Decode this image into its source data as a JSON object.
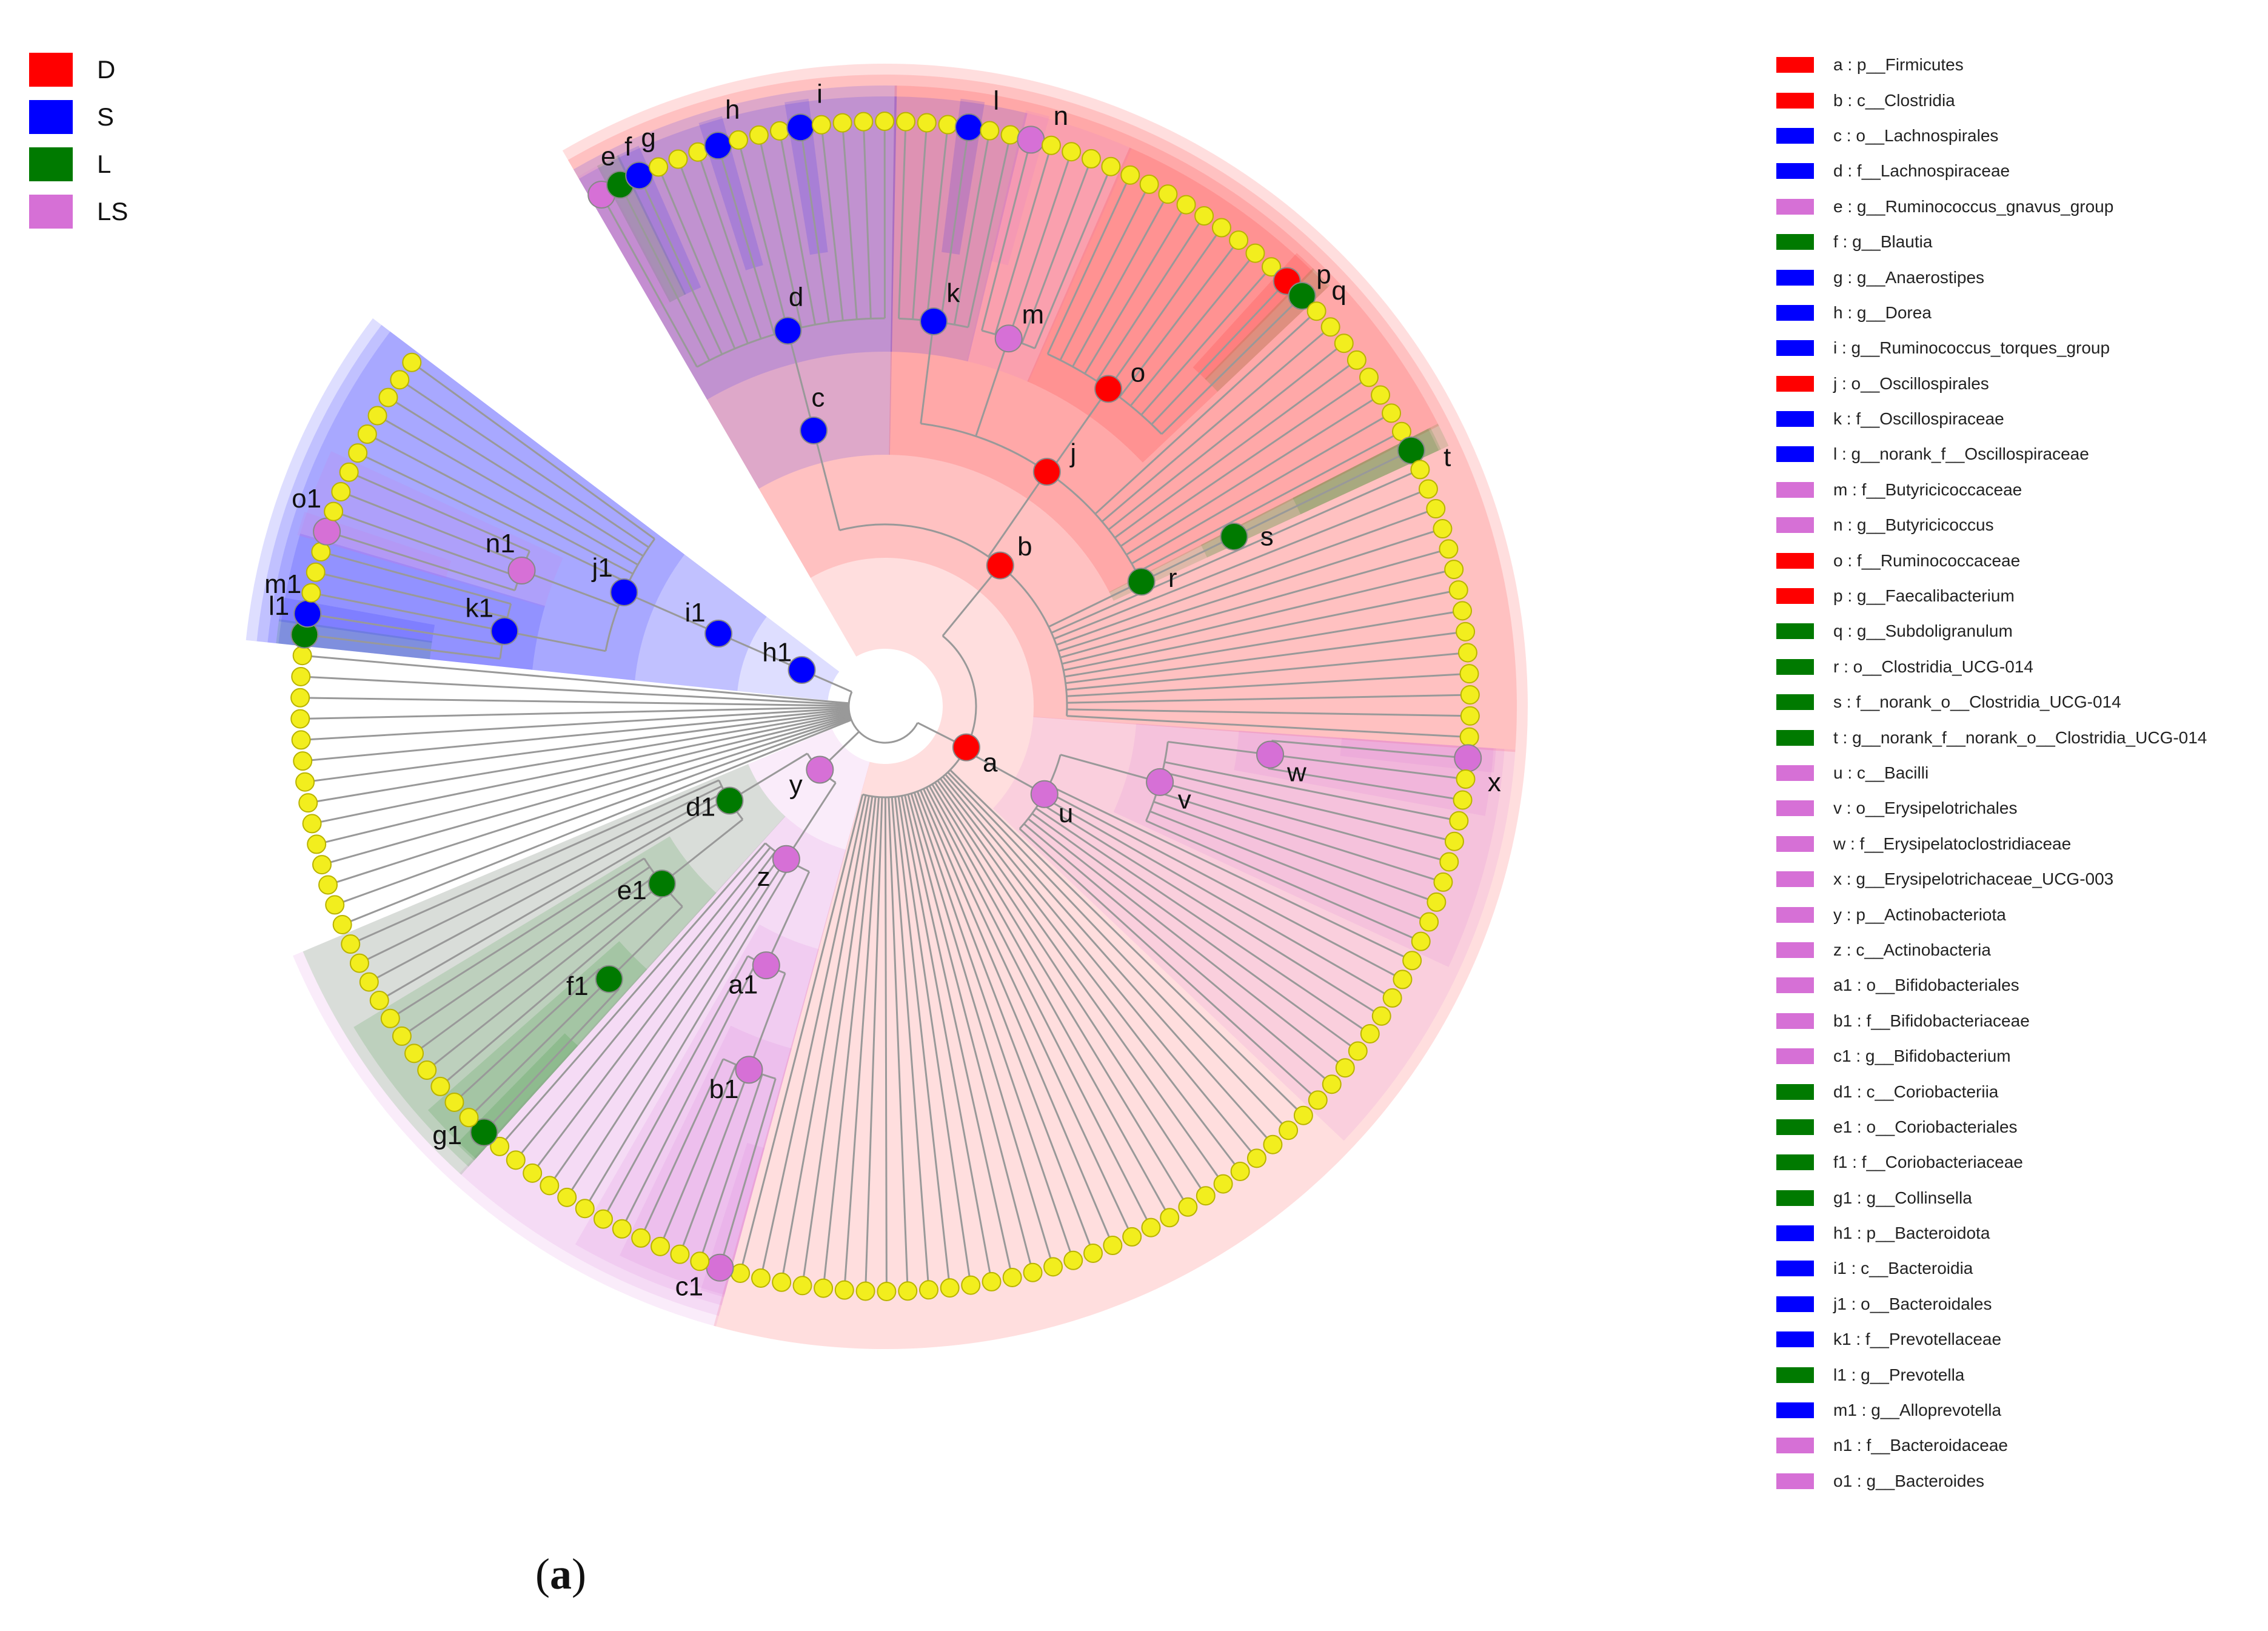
{
  "figure": {
    "caption_open": "(",
    "caption_letter": "a",
    "caption_close": ")"
  },
  "colors": {
    "D": "#ff0000",
    "S": "#0000ff",
    "L": "#007a00",
    "LS": "#d670d6",
    "leaf": "#f2ee1e",
    "branch": "#999999"
  },
  "groups": [
    {
      "key": "D",
      "label": "D"
    },
    {
      "key": "S",
      "label": "S"
    },
    {
      "key": "L",
      "label": "L"
    },
    {
      "key": "LS",
      "label": "LS"
    }
  ],
  "taxa": [
    {
      "key": "a",
      "group": "D",
      "text": "a : p__Firmicutes"
    },
    {
      "key": "b",
      "group": "D",
      "text": "b : c__Clostridia"
    },
    {
      "key": "c",
      "group": "S",
      "text": "c : o__Lachnospirales"
    },
    {
      "key": "d",
      "group": "S",
      "text": "d : f__Lachnospiraceae"
    },
    {
      "key": "e",
      "group": "LS",
      "text": "e : g__Ruminococcus_gnavus_group"
    },
    {
      "key": "f",
      "group": "L",
      "text": "f : g__Blautia"
    },
    {
      "key": "g",
      "group": "S",
      "text": "g : g__Anaerostipes"
    },
    {
      "key": "h",
      "group": "S",
      "text": "h : g__Dorea"
    },
    {
      "key": "i",
      "group": "S",
      "text": "i : g__Ruminococcus_torques_group"
    },
    {
      "key": "j",
      "group": "D",
      "text": "j : o__Oscillospirales"
    },
    {
      "key": "k",
      "group": "S",
      "text": "k : f__Oscillospiraceae"
    },
    {
      "key": "l",
      "group": "S",
      "text": "l : g__norank_f__Oscillospiraceae"
    },
    {
      "key": "m",
      "group": "LS",
      "text": "m : f__Butyricicoccaceae"
    },
    {
      "key": "n",
      "group": "LS",
      "text": "n : g__Butyricicoccus"
    },
    {
      "key": "o",
      "group": "D",
      "text": "o : f__Ruminococcaceae"
    },
    {
      "key": "p",
      "group": "D",
      "text": "p : g__Faecalibacterium"
    },
    {
      "key": "q",
      "group": "L",
      "text": "q : g__Subdoligranulum"
    },
    {
      "key": "r",
      "group": "L",
      "text": "r : o__Clostridia_UCG-014"
    },
    {
      "key": "s",
      "group": "L",
      "text": "s : f__norank_o__Clostridia_UCG-014"
    },
    {
      "key": "t",
      "group": "L",
      "text": "t : g__norank_f__norank_o__Clostridia_UCG-014"
    },
    {
      "key": "u",
      "group": "LS",
      "text": "u : c__Bacilli"
    },
    {
      "key": "v",
      "group": "LS",
      "text": "v : o__Erysipelotrichales"
    },
    {
      "key": "w",
      "group": "LS",
      "text": "w : f__Erysipelatoclostridiaceae"
    },
    {
      "key": "x",
      "group": "LS",
      "text": "x : g__Erysipelotrichaceae_UCG-003"
    },
    {
      "key": "y",
      "group": "LS",
      "text": "y : p__Actinobacteriota"
    },
    {
      "key": "z",
      "group": "LS",
      "text": "z : c__Actinobacteria"
    },
    {
      "key": "a1",
      "group": "LS",
      "text": "a1 : o__Bifidobacteriales"
    },
    {
      "key": "b1",
      "group": "LS",
      "text": "b1 : f__Bifidobacteriaceae"
    },
    {
      "key": "c1",
      "group": "LS",
      "text": "c1 : g__Bifidobacterium"
    },
    {
      "key": "d1",
      "group": "L",
      "text": "d1 : c__Coriobacteriia"
    },
    {
      "key": "e1",
      "group": "L",
      "text": "e1 : o__Coriobacteriales"
    },
    {
      "key": "f1",
      "group": "L",
      "text": "f1 : f__Coriobacteriaceae"
    },
    {
      "key": "g1",
      "group": "L",
      "text": "g1 : g__Collinsella"
    },
    {
      "key": "h1",
      "group": "S",
      "text": "h1 : p__Bacteroidota"
    },
    {
      "key": "i1",
      "group": "S",
      "text": "i1 : c__Bacteroidia"
    },
    {
      "key": "j1",
      "group": "S",
      "text": "j1 : o__Bacteroidales"
    },
    {
      "key": "k1",
      "group": "S",
      "text": "k1 : f__Prevotellaceae"
    },
    {
      "key": "l1",
      "group": "L",
      "text": "l1 : g__Prevotella"
    },
    {
      "key": "m1",
      "group": "S",
      "text": "m1 : g__Alloprevotella"
    },
    {
      "key": "n1",
      "group": "LS",
      "text": "n1 : f__Bacteroidaceae"
    },
    {
      "key": "o1",
      "group": "LS",
      "text": "o1 : g__Bacteroides"
    }
  ],
  "tree": {
    "children": [
      {
        "key": "a",
        "children": [
          {
            "key": "b",
            "children": [
              {
                "key": "c",
                "children": [
                  {
                    "key": "d",
                    "children": [
                      {
                        "key": "e"
                      },
                      {
                        "key": "f"
                      },
                      {
                        "key": "g"
                      },
                      {
                        "n": 3
                      },
                      {
                        "key": "h"
                      },
                      {
                        "n": 3
                      },
                      {
                        "key": "i"
                      },
                      {
                        "n": 4
                      }
                    ]
                  }
                ]
              },
              {
                "key": "j",
                "children": [
                  {
                    "key": "k",
                    "children": [
                      {
                        "n": 3
                      },
                      {
                        "key": "l"
                      },
                      {
                        "n": 2
                      }
                    ]
                  },
                  {
                    "key": "m",
                    "children": [
                      {
                        "key": "n"
                      },
                      {
                        "n": 4
                      }
                    ]
                  },
                  {
                    "key": "o",
                    "children": [
                      {
                        "n": 9
                      },
                      {
                        "key": "p"
                      },
                      {
                        "key": "q"
                      }
                    ]
                  },
                  {
                    "n": 8
                  }
                ]
              },
              {
                "key": "r",
                "children": [
                  {
                    "key": "s",
                    "children": [
                      {
                        "key": "t"
                      }
                    ]
                  }
                ]
              },
              {
                "n": 14
              }
            ]
          },
          {
            "key": "u",
            "children": [
              {
                "key": "v",
                "children": [
                  {
                    "key": "w",
                    "children": [
                      {
                        "key": "x"
                      },
                      {
                        "n": 2
                      }
                    ]
                  },
                  {
                    "n": 7
                  }
                ]
              },
              {
                "n": 9
              }
            ]
          },
          {
            "n": 30
          }
        ]
      },
      {
        "key": "y",
        "children": [
          {
            "key": "z",
            "children": [
              {
                "key": "a1",
                "children": [
                  {
                    "key": "b1",
                    "children": [
                      {
                        "key": "c1"
                      },
                      {
                        "n": 4
                      }
                    ]
                  },
                  {
                    "n": 2
                  }
                ]
              },
              {
                "n": 6
              }
            ]
          },
          {
            "key": "d1",
            "children": [
              {
                "key": "e1",
                "children": [
                  {
                    "key": "f1",
                    "children": [
                      {
                        "key": "g1"
                      },
                      {
                        "n": 2
                      }
                    ]
                  },
                  {
                    "n": 5
                  }
                ]
              },
              {
                "n": 4
              }
            ]
          }
        ]
      },
      {
        "n": 14
      },
      {
        "key": "h1",
        "children": [
          {
            "key": "i1",
            "children": [
              {
                "key": "j1",
                "children": [
                  {
                    "key": "k1",
                    "children": [
                      {
                        "key": "l1"
                      },
                      {
                        "key": "m1"
                      },
                      {
                        "n": 3
                      }
                    ]
                  },
                  {
                    "key": "n1",
                    "children": [
                      {
                        "key": "o1"
                      },
                      {
                        "n": 3
                      }
                    ]
                  },
                  {
                    "n": 6
                  }
                ]
              }
            ]
          }
        ]
      }
    ]
  }
}
